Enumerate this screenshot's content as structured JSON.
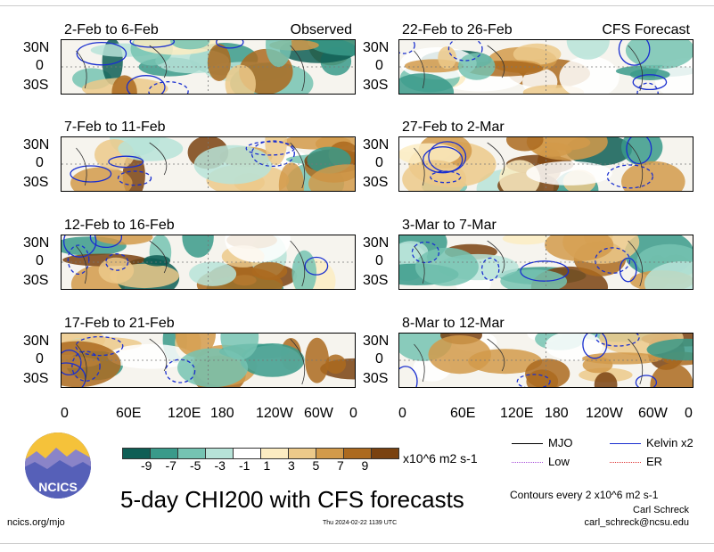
{
  "panels_left": [
    {
      "title": "2-Feb to 6-Feb",
      "tag": "Observed"
    },
    {
      "title": "7-Feb to 11-Feb",
      "tag": ""
    },
    {
      "title": "12-Feb to 16-Feb",
      "tag": ""
    },
    {
      "title": "17-Feb to 21-Feb",
      "tag": ""
    }
  ],
  "panels_right": [
    {
      "title": "22-Feb to 26-Feb",
      "tag": "CFS Forecast"
    },
    {
      "title": "27-Feb to 2-Mar",
      "tag": ""
    },
    {
      "title": "3-Mar to 7-Mar",
      "tag": ""
    },
    {
      "title": "8-Mar to 12-Mar",
      "tag": ""
    }
  ],
  "lat_labels": [
    "30N",
    "0",
    "30S"
  ],
  "lon_labels": [
    "0",
    "60E",
    "120E",
    "180",
    "120W",
    "60W",
    "0"
  ],
  "colorbar": {
    "ticks": [
      "-9",
      "-7",
      "-5",
      "-3",
      "-1",
      "1",
      "3",
      "5",
      "7",
      "9"
    ],
    "units": "x10^6 m2 s-1",
    "colors": [
      "#0e5e55",
      "#3a9a8a",
      "#75c3b2",
      "#b7e3d8",
      "#ffffff",
      "#fcecc2",
      "#ecc98a",
      "#d29a4a",
      "#ac6a1f",
      "#7a4210"
    ]
  },
  "title": "5-day CHI200 with CFS forecasts",
  "logo_text": "NCICS",
  "url": "ncics.org/mjo",
  "timestamp": "Thu 2024-02-22 1139 UTC",
  "legend": {
    "mjo": "MJO",
    "kelvin": "Kelvin x2",
    "low": "Low",
    "er": "ER",
    "colors": {
      "mjo": "#000000",
      "kelvin": "#1a2fd0",
      "low": "#a64bd8",
      "er": "#d33"
    }
  },
  "contours_note": "Contours every 2 x10^6 m2 s-1",
  "author": "Carl Schreck",
  "email": "carl_schreck@ncsu.edu"
}
